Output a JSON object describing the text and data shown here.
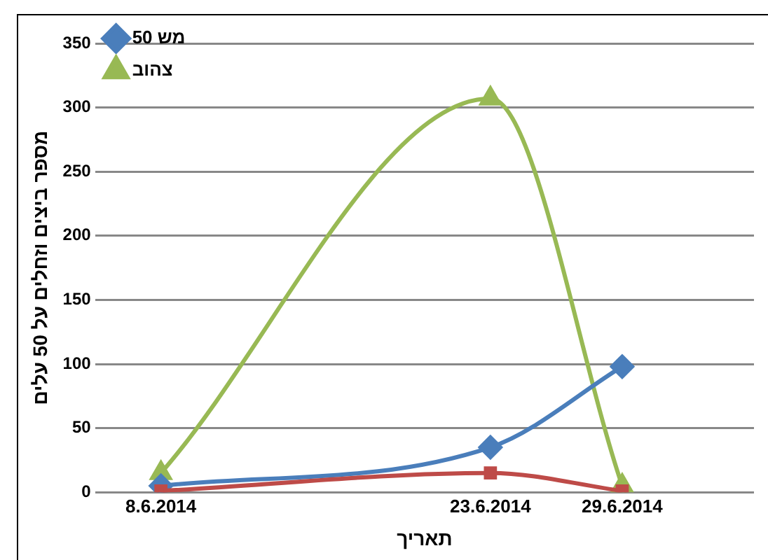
{
  "chart_data": {
    "type": "line",
    "xlabel": "תאריך",
    "ylabel": "מספר ביצים וזחלים על 50 עלים",
    "x": [
      "2014-06-08",
      "2014-06-23",
      "2014-06-29"
    ],
    "series": [
      {
        "name": "מש 50",
        "color": "#4a7ebb",
        "marker": "diamond",
        "values": [
          5,
          35,
          98
        ]
      },
      {
        "color": "#be4b48",
        "marker": "square",
        "values": [
          1,
          15,
          1
        ]
      },
      {
        "name": "צהוב",
        "color": "#98b954",
        "marker": "triangle",
        "values": [
          15,
          307,
          5
        ]
      }
    ],
    "xlim": [
      "2014-06-05",
      "2014-07-05"
    ],
    "xticks": [
      {
        "value": "2014-06-08",
        "label": "8.6.2014"
      },
      {
        "value": "2014-06-23",
        "label": "23.6.2014"
      },
      {
        "value": "2014-06-29",
        "label": "29.6.2014"
      }
    ],
    "ylim": [
      0,
      350
    ],
    "yticks": [
      0,
      50,
      100,
      150,
      200,
      250,
      300,
      350
    ],
    "grid": "y",
    "legend": "top left"
  }
}
